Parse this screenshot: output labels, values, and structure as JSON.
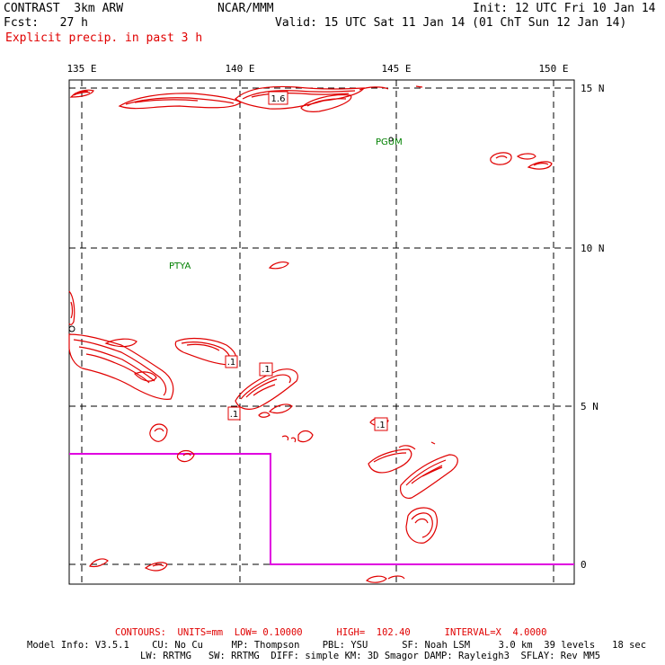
{
  "header": {
    "model": "CONTRAST  3km ARW",
    "center": "NCAR/MMM",
    "init": "Init: 12 UTC Fri 10 Jan 14",
    "fcst": "Fcst:   27 h",
    "valid": "Valid: 15 UTC Sat 11 Jan 14 (01 ChT Sun 12 Jan 14)",
    "field": "Explicit precip. in past 3 h"
  },
  "map": {
    "lon_labels": [
      "135 E",
      "140 E",
      "145 E",
      "150 E"
    ],
    "lat_labels": [
      "15 N",
      "10 N",
      "5 N",
      "0"
    ],
    "stations": [
      "PGUM",
      "PTYA"
    ],
    "contour_labels": [
      "1.6",
      ".1",
      ".1",
      ".1",
      ".1"
    ],
    "colors": {
      "contour": "#e00000",
      "station": "#008000",
      "boundary": "#e000e0",
      "grid": "#000000"
    }
  },
  "footer": {
    "contours": "CONTOURS:  UNITS=mm  LOW= 0.10000      HIGH=  102.40      INTERVAL=X  4.0000",
    "model_info_1": "Model Info: V3.5.1    CU: No Cu     MP: Thompson    PBL: YSU      SF: Noah LSM     3.0 km  39 levels   18 sec",
    "model_info_2": "LW: RRTMG   SW: RRTMG  DIFF: simple KM: 3D Smagor DAMP: Rayleigh3  SFLAY: Rev MM5"
  }
}
